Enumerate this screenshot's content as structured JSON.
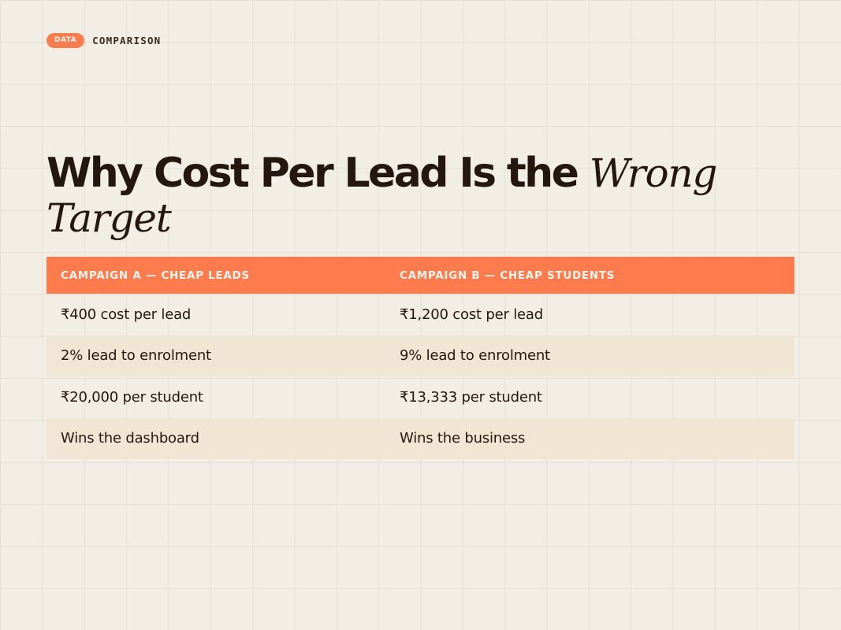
{
  "eyebrow": {
    "tag": "DATA",
    "label": "COMPARISON"
  },
  "title": {
    "plain": "Why Cost Per Lead Is the",
    "emphasis": "Wrong Target"
  },
  "table": {
    "headers": [
      "CAMPAIGN A — CHEAP LEADS",
      "CAMPAIGN B — CHEAP STUDENTS"
    ],
    "rows": [
      [
        "₹400 cost per lead",
        "₹1,200 cost per lead"
      ],
      [
        "2% lead to enrolment",
        "9% lead to enrolment"
      ],
      [
        "₹20,000 per student",
        "₹13,333 per student"
      ],
      [
        "Wins the dashboard",
        "Wins the business"
      ]
    ]
  },
  "colors": {
    "accent": "#fd7b4c",
    "background": "#f2eee6",
    "row_alt": "#f0e6d3",
    "text": "#23170f"
  }
}
